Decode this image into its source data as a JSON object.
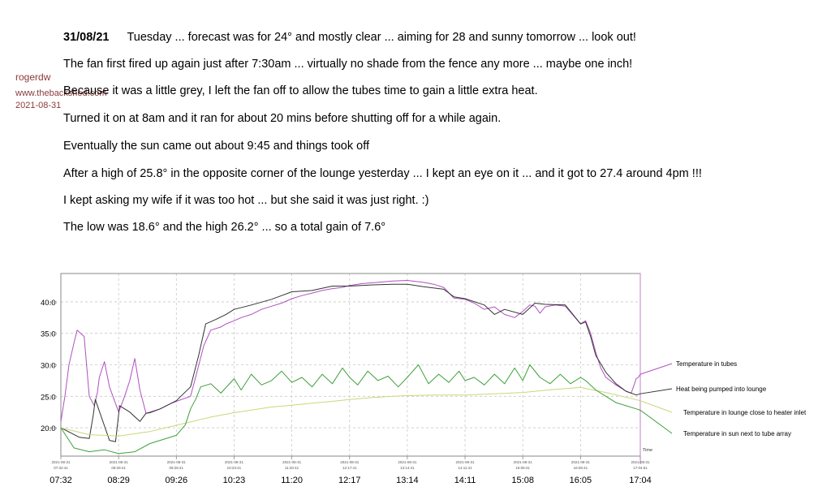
{
  "sidebar": {
    "user": "rogerdw",
    "website": "www.thebackshed.com",
    "date": "2021-08-31"
  },
  "post": {
    "date": "31/08/21",
    "paragraphs": [
      "Tuesday  ...  forecast was for 24° and mostly clear  ...  aiming for 28 and sunny tomorrow  ...  look out!",
      "The fan first fired up again just after 7:30am  ...  virtually no shade from the fence any more  ...  maybe one inch!",
      "Because it was a little grey, I left the fan off to allow the tubes time to gain a little extra heat.",
      "Turned it on at 8am and it ran for about 20 mins before shutting off for a while again.",
      "Eventually the sun came out about 9:45 and things took off",
      "After a high of 25.8° in the opposite corner of the lounge yesterday  ...  I kept an eye on it ...  and it got to 27.4 around 4pm !!!",
      "I kept asking my wife if it was too hot  ...  but she said it was just right.  :)",
      "The low was 18.6° and the high 26.2°  ...  so a total gain of 7.6°"
    ]
  },
  "chart_data": {
    "type": "line",
    "title": "",
    "xlabel": "Time",
    "ylabel": "",
    "ylim": [
      15.5,
      44.5
    ],
    "yticks": [
      "20.0",
      "25.0",
      "30.0",
      "35.0",
      "40.0"
    ],
    "xlim": [
      "07:32",
      "17:04"
    ],
    "xtick_dates": [
      "2021-08-31",
      "2021-08-31",
      "2021-08-31",
      "2021-08-31",
      "2021-08-31",
      "2021-08-31",
      "2021-08-31",
      "2021-08-31",
      "2021-08-31",
      "2021-08-31",
      "2021-08-31"
    ],
    "xtick_times": [
      "07:32:41",
      "08:29:41",
      "09:26:41",
      "10:23:41",
      "11:20:41",
      "12:17:41",
      "13:14:41",
      "14:11:41",
      "15:08:41",
      "16:05:41",
      "17:04:61"
    ],
    "xtick_big": [
      "07:32",
      "08:29",
      "09:26",
      "10:23",
      "11:20",
      "12:17",
      "13:14",
      "14:11",
      "15:08",
      "16:05",
      "17:04"
    ],
    "grid": true,
    "colors": {
      "tubes": "#b050c0",
      "lounge_pumped": "#333333",
      "lounge_inlet": "#c8d87a",
      "sun": "#3ea03a",
      "marker": "#c080c8"
    },
    "series": [
      {
        "name": "Temperature in tubes",
        "key": "tubes",
        "x": [
          "07:32",
          "07:36",
          "07:40",
          "07:45",
          "07:48",
          "07:55",
          "08:00",
          "08:05",
          "08:08",
          "08:10",
          "08:15",
          "08:20",
          "08:29",
          "08:35",
          "08:40",
          "08:45",
          "08:50",
          "08:56",
          "09:00",
          "09:10",
          "09:20",
          "09:26",
          "09:40",
          "09:45",
          "09:53",
          "10:00",
          "10:10",
          "10:15",
          "10:23",
          "10:30",
          "10:40",
          "10:50",
          "11:00",
          "11:10",
          "11:20",
          "11:30",
          "11:40",
          "11:50",
          "12:00",
          "12:10",
          "12:17",
          "12:30",
          "12:45",
          "13:00",
          "13:14",
          "13:30",
          "13:40",
          "13:50",
          "14:00",
          "14:11",
          "14:20",
          "14:30",
          "14:40",
          "14:50",
          "15:00",
          "15:08",
          "15:15",
          "15:20",
          "15:25",
          "15:30",
          "15:40",
          "15:50",
          "16:05",
          "16:10",
          "16:15",
          "16:20",
          "16:25",
          "16:30",
          "16:40",
          "16:50",
          "16:55",
          "17:00",
          "17:02",
          "17:04"
        ],
        "y": [
          21.0,
          25.0,
          30.0,
          33.5,
          35.5,
          34.5,
          25.0,
          23.5,
          25.5,
          28.0,
          30.5,
          26.5,
          22.5,
          25.0,
          27.5,
          31.0,
          26.0,
          22.3,
          22.5,
          23.0,
          23.8,
          24.2,
          25.0,
          28.0,
          33.0,
          35.5,
          36.0,
          36.5,
          37.0,
          37.5,
          38.0,
          38.8,
          39.3,
          39.8,
          40.5,
          41.0,
          41.4,
          41.8,
          42.1,
          42.3,
          42.6,
          42.9,
          43.1,
          43.3,
          43.4,
          43.1,
          42.8,
          42.3,
          40.6,
          40.4,
          39.8,
          38.8,
          39.2,
          38.0,
          37.5,
          38.5,
          39.5,
          39.3,
          38.2,
          39.2,
          39.5,
          39.3,
          36.5,
          37.0,
          35.0,
          32.0,
          29.5,
          28.0,
          26.8,
          25.8,
          25.5,
          27.8,
          28.0,
          28.5
        ]
      },
      {
        "name": "Heat being pumped into lounge",
        "key": "lounge_pumped",
        "x": [
          "07:32",
          "07:50",
          "08:00",
          "08:04",
          "08:06",
          "08:20",
          "08:26",
          "08:30",
          "08:40",
          "08:50",
          "08:56",
          "09:00",
          "09:10",
          "09:26",
          "09:40",
          "09:48",
          "09:55",
          "10:05",
          "10:15",
          "10:23",
          "10:40",
          "11:00",
          "11:10",
          "11:20",
          "11:40",
          "12:00",
          "12:17",
          "12:40",
          "13:00",
          "13:14",
          "13:30",
          "13:50",
          "14:00",
          "14:11",
          "14:30",
          "14:40",
          "14:50",
          "15:08",
          "15:20",
          "15:30",
          "15:50",
          "16:05",
          "16:10",
          "16:15",
          "16:20",
          "16:30",
          "16:40",
          "16:50",
          "17:00",
          "17:04"
        ],
        "y": [
          20.0,
          18.5,
          18.3,
          22.0,
          24.5,
          18.0,
          17.8,
          23.5,
          22.5,
          21.0,
          22.3,
          22.4,
          23.0,
          24.3,
          26.5,
          31.5,
          36.5,
          37.2,
          38.0,
          38.8,
          39.5,
          40.4,
          41.0,
          41.6,
          41.8,
          42.5,
          42.5,
          42.7,
          42.8,
          42.8,
          42.4,
          42.0,
          40.8,
          40.5,
          39.5,
          38.0,
          38.8,
          38.0,
          39.8,
          39.6,
          39.5,
          36.5,
          36.8,
          34.5,
          31.5,
          28.8,
          27.0,
          25.8,
          25.2,
          25.4
        ]
      },
      {
        "name": "Temperature in lounge close to heater inlet",
        "key": "lounge_inlet",
        "x": [
          "07:32",
          "08:00",
          "08:29",
          "09:00",
          "09:26",
          "10:00",
          "10:23",
          "11:00",
          "11:20",
          "12:00",
          "12:17",
          "12:40",
          "13:00",
          "13:14",
          "13:40",
          "14:11",
          "14:40",
          "15:08",
          "15:40",
          "16:05",
          "16:30",
          "17:04"
        ],
        "y": [
          20.0,
          18.9,
          18.7,
          19.4,
          20.4,
          21.7,
          22.4,
          23.3,
          23.6,
          24.2,
          24.5,
          24.8,
          25.0,
          25.1,
          25.2,
          25.2,
          25.4,
          25.6,
          26.1,
          26.4,
          25.6,
          24.3
        ]
      },
      {
        "name": "Temperature in sun next to tube array",
        "key": "sun",
        "x": [
          "07:32",
          "07:45",
          "08:00",
          "08:15",
          "08:29",
          "08:45",
          "09:00",
          "09:26",
          "09:35",
          "09:40",
          "09:45",
          "09:50",
          "10:00",
          "10:10",
          "10:23",
          "10:30",
          "10:40",
          "10:50",
          "11:00",
          "11:10",
          "11:20",
          "11:30",
          "11:40",
          "11:50",
          "12:00",
          "12:10",
          "12:17",
          "12:25",
          "12:35",
          "12:45",
          "12:55",
          "13:05",
          "13:14",
          "13:25",
          "13:35",
          "13:45",
          "13:55",
          "14:05",
          "14:11",
          "14:20",
          "14:30",
          "14:40",
          "14:50",
          "15:00",
          "15:08",
          "15:15",
          "15:25",
          "15:35",
          "15:45",
          "15:55",
          "16:05",
          "16:10",
          "16:20",
          "16:30",
          "16:40",
          "16:50",
          "17:00",
          "17:04"
        ],
        "y": [
          20.0,
          16.8,
          16.2,
          16.5,
          15.9,
          16.2,
          17.5,
          18.8,
          20.5,
          23.0,
          24.5,
          26.5,
          27.0,
          25.5,
          27.8,
          26.0,
          28.5,
          26.8,
          27.5,
          29.0,
          27.2,
          28.0,
          26.5,
          28.5,
          27.0,
          29.5,
          28.0,
          26.8,
          29.0,
          27.5,
          28.2,
          26.5,
          28.0,
          30.0,
          27.0,
          28.5,
          27.2,
          29.0,
          27.5,
          28.0,
          26.8,
          28.5,
          27.0,
          29.5,
          27.5,
          30.0,
          28.0,
          27.0,
          28.5,
          27.0,
          28.0,
          27.5,
          26.0,
          25.0,
          24.0,
          23.5,
          23.0,
          22.8
        ]
      }
    ]
  }
}
